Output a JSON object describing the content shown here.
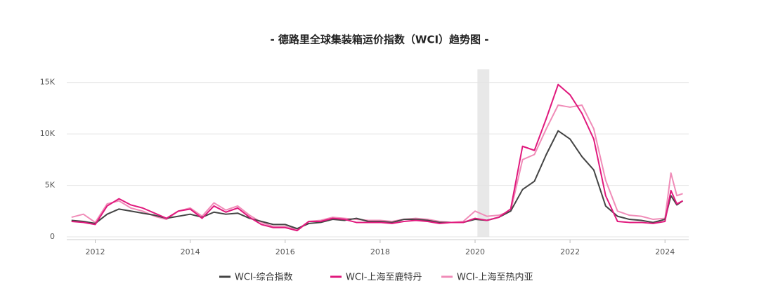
{
  "chart_data": {
    "type": "line",
    "title": "- 德路里全球集装箱运价指数（WCI）趋势图 -",
    "x": [
      2011.5,
      2011.75,
      2012,
      2012.25,
      2012.5,
      2012.75,
      2013,
      2013.25,
      2013.5,
      2013.75,
      2014,
      2014.25,
      2014.5,
      2014.75,
      2015,
      2015.25,
      2015.5,
      2015.75,
      2016,
      2016.25,
      2016.5,
      2016.75,
      2017,
      2017.25,
      2017.5,
      2017.75,
      2018,
      2018.25,
      2018.5,
      2018.75,
      2019,
      2019.25,
      2019.5,
      2019.75,
      2020,
      2020.25,
      2020.5,
      2020.75,
      2021,
      2021.25,
      2021.5,
      2021.75,
      2022,
      2022.25,
      2022.5,
      2022.75,
      2023,
      2023.25,
      2023.5,
      2023.75,
      2024,
      2024.125,
      2024.25,
      2024.375
    ],
    "series": [
      {
        "name": "WCI-综合指数",
        "color": "#444444",
        "values": [
          1600,
          1500,
          1300,
          2200,
          2700,
          2500,
          2300,
          2100,
          1800,
          2000,
          2200,
          1900,
          2400,
          2200,
          2300,
          1800,
          1500,
          1200,
          1200,
          800,
          1300,
          1400,
          1700,
          1600,
          1800,
          1500,
          1500,
          1400,
          1700,
          1700,
          1600,
          1400,
          1400,
          1400,
          1700,
          1600,
          1900,
          2500,
          4600,
          5400,
          8000,
          10300,
          9500,
          7800,
          6500,
          3000,
          2000,
          1700,
          1600,
          1400,
          1700,
          4000,
          3100,
          3500
        ]
      },
      {
        "name": "WCI-上海至鹿特丹",
        "color": "#e0197d",
        "values": [
          1500,
          1400,
          1200,
          3000,
          3700,
          3100,
          2800,
          2300,
          1800,
          2500,
          2700,
          1800,
          3000,
          2400,
          2800,
          1900,
          1200,
          900,
          900,
          600,
          1500,
          1500,
          1800,
          1700,
          1400,
          1400,
          1400,
          1300,
          1500,
          1600,
          1500,
          1300,
          1400,
          1400,
          1800,
          1600,
          1900,
          2700,
          8800,
          8400,
          11500,
          14800,
          13800,
          12000,
          9500,
          4000,
          1500,
          1400,
          1400,
          1300,
          1500,
          4500,
          3200,
          3500
        ]
      },
      {
        "name": "WCI-上海至热内亚",
        "color": "#f08cb8",
        "values": [
          1900,
          2200,
          1400,
          3200,
          3500,
          2800,
          2500,
          2000,
          1700,
          2500,
          2800,
          2000,
          3300,
          2600,
          3000,
          2100,
          1400,
          1000,
          1000,
          700,
          1500,
          1600,
          1900,
          1800,
          1700,
          1600,
          1600,
          1500,
          1700,
          1800,
          1700,
          1500,
          1400,
          1500,
          2500,
          2000,
          2100,
          2500,
          7500,
          8000,
          10500,
          12800,
          12600,
          12800,
          10500,
          5500,
          2500,
          2100,
          2000,
          1700,
          1800,
          6200,
          4000,
          4200
        ]
      }
    ],
    "xlim": [
      2011.4,
      2024.5
    ],
    "xticks": [
      2012,
      2014,
      2016,
      2018,
      2020,
      2022,
      2024
    ],
    "ylim": [
      0,
      16000
    ],
    "yticks": [
      0,
      {
        "value": 5000,
        "label": "5K"
      },
      {
        "value": 10000,
        "label": "10K"
      },
      {
        "value": 15000,
        "label": "15K"
      }
    ],
    "shaded_range": [
      2020.05,
      2020.3
    ],
    "grid": true
  }
}
